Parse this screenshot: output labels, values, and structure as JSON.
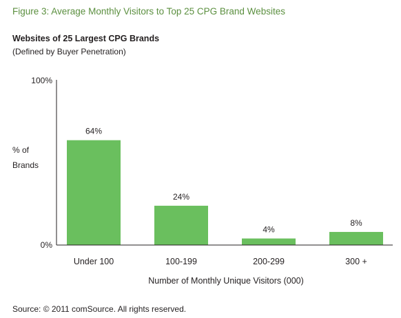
{
  "figure_title": "Figure 3: Average Monthly Visitors to Top 25 CPG Brand Websites",
  "source": "Source: © 2011 comSource. All rights reserved.",
  "colors": {
    "bar": "#6abf5e",
    "title": "#5b8f3f",
    "text": "#231f20",
    "axis": "#231f20"
  },
  "chart_data": {
    "type": "bar",
    "title": "Websites of 25 Largest CPG Brands",
    "subtitle": "(Defined by Buyer Penetration)",
    "xlabel": "Number of Monthly Unique Visitors (000)",
    "ylabel_lines": [
      "% of",
      "Brands"
    ],
    "ylim": [
      0,
      100
    ],
    "yticks": [
      "0%",
      "100%"
    ],
    "categories": [
      "Under 100",
      "100-199",
      "200-299",
      "300 +"
    ],
    "values": [
      64,
      24,
      4,
      8
    ],
    "data_labels": [
      "64%",
      "24%",
      "4%",
      "8%"
    ],
    "grid": false,
    "legend": "none"
  }
}
